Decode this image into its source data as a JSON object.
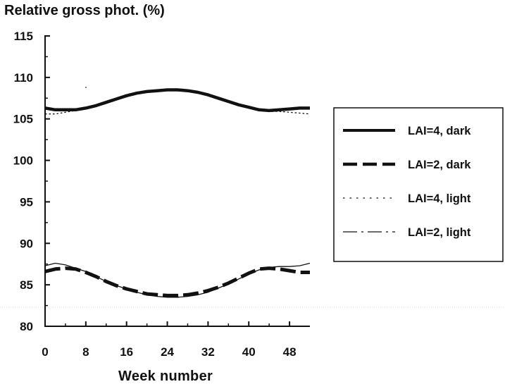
{
  "chart_data": {
    "type": "line",
    "title": "",
    "ylabel": "Relative gross phot. (%)",
    "xlabel": "Week number",
    "xlim": [
      0,
      52
    ],
    "ylim": [
      80,
      115
    ],
    "x_ticks": [
      0,
      8,
      16,
      24,
      32,
      40,
      48
    ],
    "y_ticks": [
      80,
      85,
      90,
      95,
      100,
      105,
      110,
      115
    ],
    "grid": false,
    "legend_position": "right",
    "series": [
      {
        "name": "LAI=4, dark",
        "style": "solid-thick",
        "x": [
          0,
          2,
          4,
          6,
          8,
          10,
          12,
          14,
          16,
          18,
          20,
          22,
          24,
          26,
          28,
          30,
          32,
          34,
          36,
          38,
          40,
          42,
          44,
          46,
          48,
          50,
          52
        ],
        "y": [
          106.3,
          106.1,
          106.1,
          106.1,
          106.3,
          106.6,
          107.0,
          107.4,
          107.8,
          108.1,
          108.3,
          108.4,
          108.5,
          108.5,
          108.4,
          108.2,
          107.9,
          107.5,
          107.1,
          106.7,
          106.4,
          106.1,
          106.0,
          106.1,
          106.2,
          106.3,
          106.3
        ]
      },
      {
        "name": "LAI=2, dark",
        "style": "dashed-thick",
        "x": [
          0,
          2,
          4,
          6,
          8,
          10,
          12,
          14,
          16,
          18,
          20,
          22,
          24,
          26,
          28,
          30,
          32,
          34,
          36,
          38,
          40,
          42,
          44,
          46,
          48,
          50,
          52
        ],
        "y": [
          86.6,
          86.9,
          87.0,
          86.9,
          86.5,
          86.0,
          85.4,
          84.9,
          84.5,
          84.2,
          83.9,
          83.8,
          83.7,
          83.7,
          83.8,
          84.0,
          84.3,
          84.7,
          85.2,
          85.8,
          86.4,
          86.9,
          87.0,
          86.9,
          86.7,
          86.5,
          86.5
        ]
      },
      {
        "name": "LAI=4, light",
        "style": "dotted-thin",
        "x": [
          0,
          2,
          4,
          6,
          8,
          10,
          12,
          14,
          16,
          18,
          20,
          22,
          24,
          26,
          28,
          30,
          32,
          34,
          36,
          38,
          40,
          42,
          44,
          46,
          48,
          50,
          52
        ],
        "y": [
          105.6,
          105.6,
          105.8,
          106.0,
          106.3,
          106.6,
          107.0,
          107.4,
          107.8,
          108.1,
          108.3,
          108.4,
          108.5,
          108.5,
          108.4,
          108.2,
          107.9,
          107.5,
          107.1,
          106.7,
          106.3,
          106.0,
          105.9,
          105.9,
          105.8,
          105.7,
          105.6
        ]
      },
      {
        "name": "LAI=2, light",
        "style": "dashdot-thin",
        "x": [
          0,
          2,
          4,
          6,
          8,
          10,
          12,
          14,
          16,
          18,
          20,
          22,
          24,
          26,
          28,
          30,
          32,
          34,
          36,
          38,
          40,
          42,
          44,
          46,
          48,
          50,
          52
        ],
        "y": [
          87.3,
          87.6,
          87.4,
          87.0,
          86.6,
          86.0,
          85.4,
          84.9,
          84.5,
          84.1,
          83.8,
          83.6,
          83.5,
          83.5,
          83.6,
          83.8,
          84.1,
          84.6,
          85.1,
          85.7,
          86.3,
          86.8,
          87.1,
          87.2,
          87.2,
          87.3,
          87.6
        ]
      }
    ]
  }
}
